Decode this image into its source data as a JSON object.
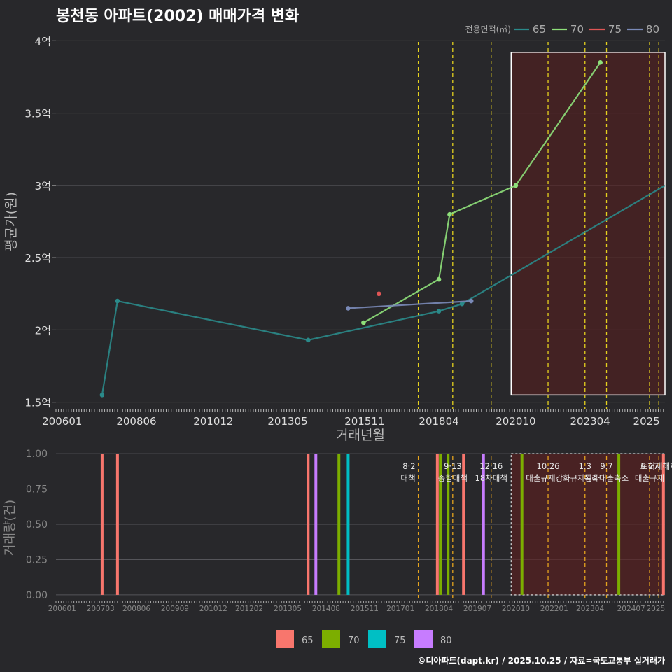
{
  "title": "봉천동 아파트(2002) 매매가격 변화",
  "footer": "©디아파트(dapt.kr) / 2025.10.25 / 자료=국토교통부 실거래가",
  "colors": {
    "background": "#28282b",
    "grid": "#55555a",
    "text": "#ffffff",
    "axis_text": "#dddddd",
    "policy_line": "#e6d21e",
    "highlight_fill": "#5a1e1e",
    "highlight_border": "#ffffff"
  },
  "chart_data": [
    {
      "type": "line",
      "title": "봉천동 아파트(2002) 매매가격 변화",
      "xlabel": "거래년월",
      "ylabel": "평균가(원)",
      "ylim": [
        1.45,
        4.05
      ],
      "xlim": [
        2005.8,
        2025.6
      ],
      "y_ticks": [
        1.5,
        2,
        2.5,
        3,
        3.5,
        4
      ],
      "y_tick_labels": [
        "1.5억",
        "2억",
        "2.5억",
        "3억",
        "3.5억",
        "4억"
      ],
      "x_ticks": [
        2006.0,
        2008.417,
        2010.917,
        2013.333,
        2015.833,
        2018.25,
        2020.75,
        2023.167,
        2025.0
      ],
      "x_tick_labels": [
        "200601",
        "200806",
        "201012",
        "201305",
        "201511",
        "201804",
        "202010",
        "202304",
        "2025"
      ],
      "legend_title": "전용면적(㎡)",
      "legend_position": "top-right",
      "series": [
        {
          "name": "65",
          "color": "#2a8a8a",
          "x": [
            2007.3,
            2007.8,
            2014.0,
            2018.25,
            2019.0,
            2025.6
          ],
          "y": [
            1.55,
            2.2,
            1.93,
            2.13,
            2.18,
            3.0
          ]
        },
        {
          "name": "70",
          "color": "#8ee07a",
          "x": [
            2015.8,
            2018.25,
            2018.6,
            2020.75,
            2023.5
          ],
          "y": [
            2.05,
            2.35,
            2.8,
            3.0,
            3.85
          ]
        },
        {
          "name": "75",
          "color": "#e05555",
          "x": [
            2016.3
          ],
          "y": [
            2.25
          ]
        },
        {
          "name": "80",
          "color": "#7a8ab8",
          "x": [
            2015.3,
            2019.3
          ],
          "y": [
            2.15,
            2.2
          ]
        }
      ],
      "policy_lines_x": [
        2017.58,
        2018.7,
        2019.95,
        2021.8,
        2023.0,
        2023.7,
        2025.1,
        2025.4
      ],
      "highlight": {
        "x0": 2020.6,
        "x1": 2025.6,
        "y0": 1.55,
        "y1": 3.92
      }
    },
    {
      "type": "bar",
      "ylabel": "거래량(건)",
      "ylim": [
        -0.04,
        1.04
      ],
      "xlim": [
        2005.8,
        2025.6
      ],
      "y_ticks": [
        0,
        0.25,
        0.5,
        0.75,
        1
      ],
      "y_tick_labels": [
        "0.00",
        "0.25",
        "0.50",
        "0.75",
        "1.00"
      ],
      "x_ticks": [
        2006.0,
        2007.25,
        2008.417,
        2009.667,
        2010.917,
        2012.083,
        2013.333,
        2014.583,
        2015.833,
        2017.0,
        2018.25,
        2019.5,
        2020.75,
        2022.0,
        2023.167,
        2024.5,
        2025.3
      ],
      "x_tick_labels": [
        "200601",
        "200703",
        "200806",
        "200909",
        "201012",
        "201202",
        "201305",
        "201408",
        "201511",
        "201701",
        "201804",
        "201907",
        "202010",
        "202201",
        "202304",
        "202407",
        "2025"
      ],
      "legend_position": "bottom",
      "series_colors": [
        {
          "name": "65",
          "color": "#f8766d"
        },
        {
          "name": "70",
          "color": "#7cae00"
        },
        {
          "name": "75",
          "color": "#00bfc4"
        },
        {
          "name": "80",
          "color": "#c77cff"
        }
      ],
      "bars": [
        {
          "x": 2007.3,
          "value": 1,
          "series": "65"
        },
        {
          "x": 2007.8,
          "value": 1,
          "series": "65"
        },
        {
          "x": 2014.0,
          "value": 1,
          "series": "65"
        },
        {
          "x": 2014.25,
          "value": 1,
          "series": "80"
        },
        {
          "x": 2015.0,
          "value": 1,
          "series": "70"
        },
        {
          "x": 2015.3,
          "value": 1,
          "series": "75"
        },
        {
          "x": 2018.2,
          "value": 1,
          "series": "65"
        },
        {
          "x": 2018.3,
          "value": 1,
          "series": "70"
        },
        {
          "x": 2018.55,
          "value": 1,
          "series": "70"
        },
        {
          "x": 2019.05,
          "value": 1,
          "series": "65"
        },
        {
          "x": 2019.7,
          "value": 1,
          "series": "80"
        },
        {
          "x": 2020.95,
          "value": 1,
          "series": "70"
        },
        {
          "x": 2024.1,
          "value": 1,
          "series": "70"
        },
        {
          "x": 2025.55,
          "value": 1,
          "series": "65"
        }
      ],
      "policy_lines": [
        {
          "x": 2017.58,
          "label": "8·2 대책"
        },
        {
          "x": 2018.7,
          "label": "9·13 종합대책"
        },
        {
          "x": 2019.95,
          "label": "12·16 18차대책"
        },
        {
          "x": 2021.8,
          "label": "10.26 대출규제강화"
        },
        {
          "x": 2023.0,
          "label": "1.3 규제완화"
        },
        {
          "x": 2023.7,
          "label": "9.7 특례대출축소"
        },
        {
          "x": 2025.1,
          "label": "6.27 대출규제"
        },
        {
          "x": 2025.4,
          "label": "토허제해제"
        }
      ],
      "highlight": {
        "x0": 2020.6,
        "x1": 2025.6,
        "y0": 0,
        "y1": 1
      }
    }
  ]
}
